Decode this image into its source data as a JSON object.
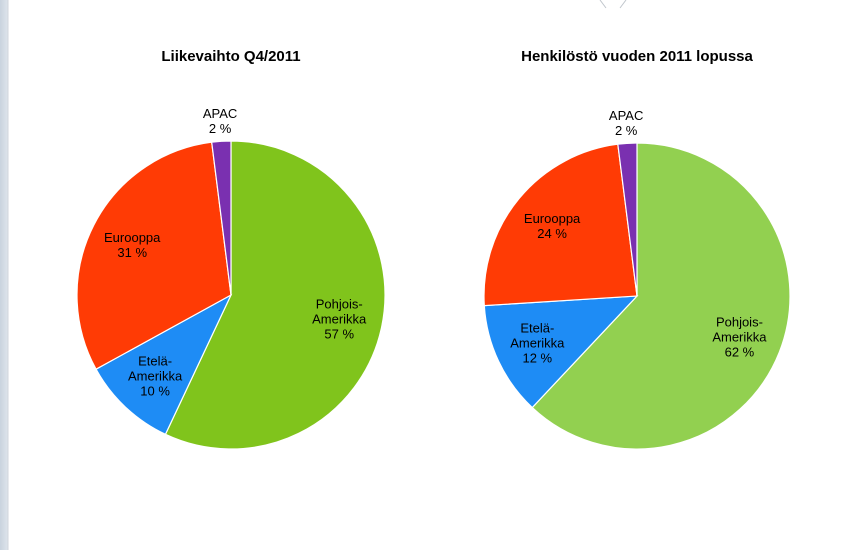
{
  "chart_data": [
    {
      "type": "pie",
      "title": "Liikevaihto Q4/2011",
      "categories": [
        "Pohjois-Amerikka",
        "Etelä-Amerikka",
        "Eurooppa",
        "APAC"
      ],
      "values": [
        57,
        10,
        31,
        2
      ],
      "value_labels": [
        "57 %",
        "10 %",
        "31 %",
        "2 %"
      ],
      "colors": [
        "#80c41c",
        "#1e8cf5",
        "#ff3b05",
        "#7a30b0"
      ]
    },
    {
      "type": "pie",
      "title": "Henkilöstö vuoden 2011 lopussa",
      "categories": [
        "Pohjois-Amerikka",
        "Etelä-Amerikka",
        "Eurooppa",
        "APAC"
      ],
      "values": [
        62,
        12,
        24,
        2
      ],
      "value_labels": [
        "62 %",
        "12 %",
        "24 %",
        "2 %"
      ],
      "colors": [
        "#92d050",
        "#1e8cf5",
        "#ff3b05",
        "#7a30b0"
      ]
    }
  ]
}
